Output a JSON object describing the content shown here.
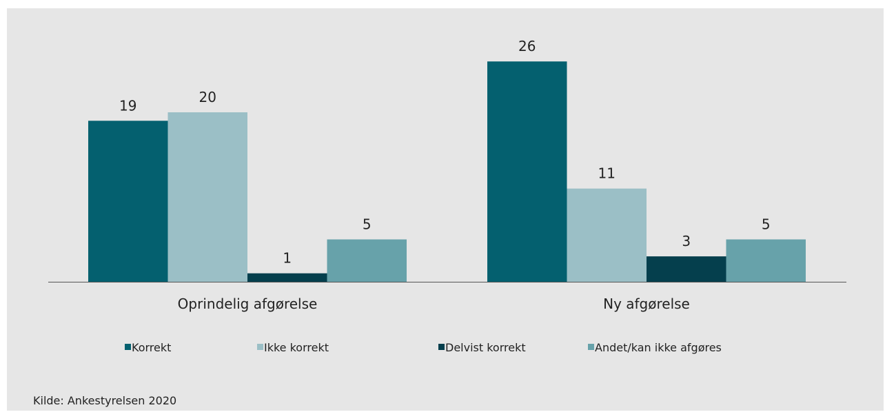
{
  "chart_data": {
    "type": "bar",
    "categories": [
      "Oprindelig afgørelse",
      "Ny afgørelse"
    ],
    "series": [
      {
        "name": "Korrekt",
        "values": [
          19,
          26
        ],
        "color": "#04606f"
      },
      {
        "name": "Ikke korrekt",
        "values": [
          20,
          11
        ],
        "color": "#9bbfc6"
      },
      {
        "name": "Delvist korrekt",
        "values": [
          1,
          3
        ],
        "color": "#053f4d"
      },
      {
        "name": "Andet/kan ikke afgøres",
        "values": [
          5,
          5
        ],
        "color": "#67a2aa"
      }
    ],
    "ylim": [
      0,
      26
    ],
    "grid": false,
    "legend_position": "bottom"
  },
  "source": "Kilde:  Ankestyrelsen 2020"
}
